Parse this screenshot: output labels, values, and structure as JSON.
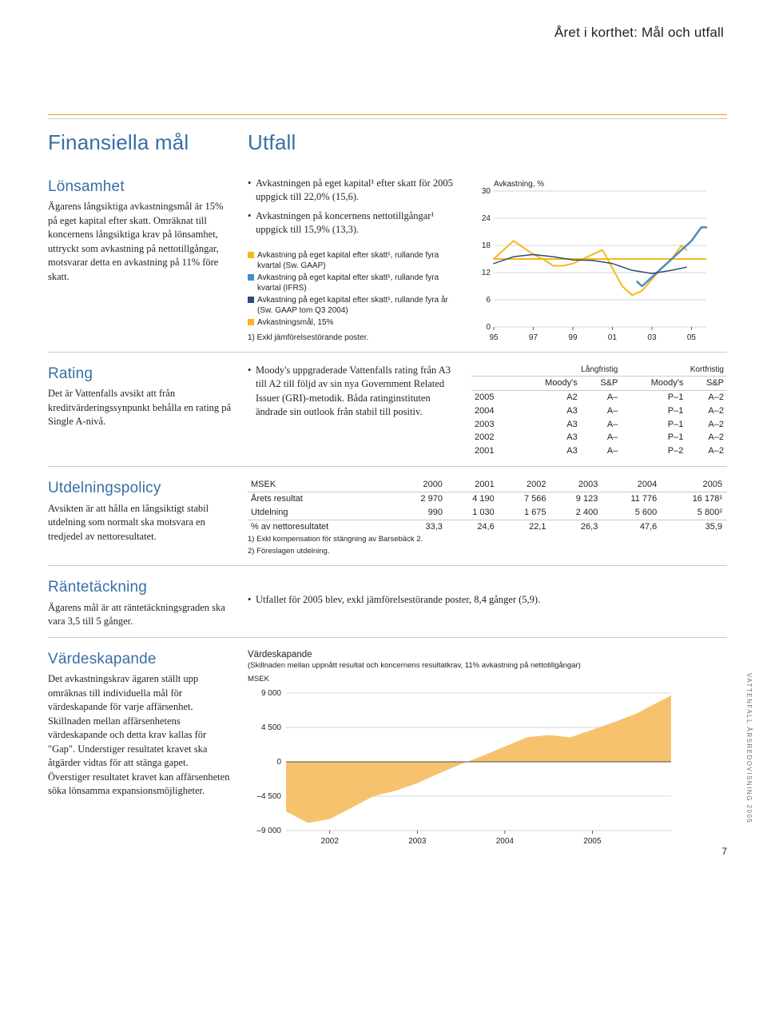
{
  "page_title": "Året i korthet: Mål och utfall",
  "colors": {
    "accent_orange": "#f7941e",
    "blue_heading": "#3a6ea5",
    "line_yellow": "#f7b71e",
    "line_blue": "#4b8dc0",
    "line_navy": "#2a4d7a",
    "fill_area": "#f7c26e",
    "grid_gray": "#c7c8ca",
    "text": "#231f20"
  },
  "headers": {
    "financial": "Finansiella mål",
    "outcome": "Utfall"
  },
  "sections": {
    "lonsamhet": {
      "title": "Lönsamhet",
      "body": "Ägarens långsiktiga avkastningsmål är 15% på eget kapital efter skatt. Omräknat till koncernens långsiktiga krav på lönsamhet, uttryckt som avkastning på nettotillgångar, motsvarar detta en avkastning på 11% före skatt.",
      "bullets": [
        "Avkastningen på eget kapital¹ efter skatt för 2005 uppgick till 22,0% (15,6).",
        "Avkastningen på koncernens nettotillgångar¹ uppgick till 15,9% (13,3)."
      ],
      "legend": [
        "Avkastning på eget kapital efter skatt¹, rullande fyra kvartal (Sw. GAAP)",
        "Avkastning på eget kapital efter skatt¹, rullande fyra kvartal (IFRS)",
        "Avkastning på eget kapital efter skatt¹, rullande fyra år (Sw. GAAP tom Q3 2004)",
        "Avkastningsmål, 15%"
      ],
      "note": "1) Exkl jämförelsestörande poster.",
      "chart": {
        "type": "line",
        "y_title": "Avkastning, %",
        "ylim": [
          0,
          30
        ],
        "yticks": [
          0,
          6,
          12,
          18,
          24,
          30
        ],
        "xticks": [
          "95",
          "97",
          "99",
          "01",
          "03",
          "05"
        ],
        "x_range": [
          1995,
          2005.75
        ],
        "grid_color": "#c7c8ca",
        "background_color": "#ffffff",
        "font_size_ticks": 10,
        "series": [
          {
            "name": "yellow",
            "color": "#f7b71e",
            "width": 2,
            "points": [
              [
                1995,
                15
              ],
              [
                1995.5,
                17
              ],
              [
                1996,
                19
              ],
              [
                1996.5,
                17.5
              ],
              [
                1997,
                16
              ],
              [
                1997.5,
                15
              ],
              [
                1998,
                13.5
              ],
              [
                1998.5,
                13.5
              ],
              [
                1999,
                14
              ],
              [
                1999.5,
                15
              ],
              [
                2000,
                16
              ],
              [
                2000.5,
                17
              ],
              [
                2001,
                13
              ],
              [
                2001.5,
                9
              ],
              [
                2002,
                7
              ],
              [
                2002.5,
                8
              ],
              [
                2003,
                10.5
              ],
              [
                2003.5,
                13
              ],
              [
                2004,
                15
              ],
              [
                2004.5,
                18
              ],
              [
                2004.75,
                17
              ]
            ]
          },
          {
            "name": "blue",
            "color": "#4b8dc0",
            "width": 2.5,
            "points": [
              [
                2002.25,
                10
              ],
              [
                2002.5,
                9
              ],
              [
                2003,
                11
              ],
              [
                2003.5,
                13
              ],
              [
                2004,
                15
              ],
              [
                2004.5,
                17
              ],
              [
                2005,
                19
              ],
              [
                2005.5,
                22
              ],
              [
                2005.75,
                22
              ]
            ]
          },
          {
            "name": "navy",
            "color": "#2a4d7a",
            "width": 1.5,
            "points": [
              [
                1995,
                14
              ],
              [
                1996,
                15.5
              ],
              [
                1997,
                16
              ],
              [
                1998,
                15.5
              ],
              [
                1999,
                14.8
              ],
              [
                2000,
                14.7
              ],
              [
                2001,
                14
              ],
              [
                2002,
                12.5
              ],
              [
                2003,
                11.8
              ],
              [
                2004,
                12.5
              ],
              [
                2004.75,
                13.2
              ]
            ]
          }
        ],
        "target_line": {
          "y": 15,
          "color": "#f7b71e",
          "width": 2
        }
      }
    },
    "rating": {
      "title": "Rating",
      "body": "Det är Vattenfalls avsikt att från kreditvärderingssynpunkt behålla en rating på Single A-nivå.",
      "bullet": "Moody's uppgraderade Vattenfalls rating från A3 till A2 till följd av sin nya Government Related Issuer (GRI)-metodik. Båda ratinginstituten ändrade sin outlook från stabil till positiv.",
      "table": {
        "header_top": [
          "Långfristig",
          "Kortfristig"
        ],
        "header_sub": [
          "Moody's",
          "S&P",
          "Moody's",
          "S&P"
        ],
        "rows": [
          [
            "2005",
            "A2",
            "A–",
            "P–1",
            "A–2"
          ],
          [
            "2004",
            "A3",
            "A–",
            "P–1",
            "A–2"
          ],
          [
            "2003",
            "A3",
            "A–",
            "P–1",
            "A–2"
          ],
          [
            "2002",
            "A3",
            "A–",
            "P–1",
            "A–2"
          ],
          [
            "2001",
            "A3",
            "A–",
            "P–2",
            "A–2"
          ]
        ]
      }
    },
    "utdelning": {
      "title": "Utdelningspolicy",
      "body": "Avsikten är att hålla en långsiktigt stabil utdelning som normalt ska motsvara en tredjedel av nettoresultatet.",
      "table": {
        "header_label": "MSEK",
        "years": [
          "2000",
          "2001",
          "2002",
          "2003",
          "2004",
          "2005"
        ],
        "rows": [
          {
            "label": "Årets resultat",
            "values": [
              "2 970",
              "4 190",
              "7 566",
              "9 123",
              "11 776",
              "16 178¹"
            ]
          },
          {
            "label": "Utdelning",
            "values": [
              "990",
              "1 030",
              "1 675",
              "2 400",
              "5 600",
              "5 800²"
            ]
          },
          {
            "label": "% av nettoresultatet",
            "values": [
              "33,3",
              "24,6",
              "22,1",
              "26,3",
              "47,6",
              "35,9"
            ]
          }
        ],
        "notes": [
          "1) Exkl kompensation för stängning av Barsebäck 2.",
          "2) Föreslagen utdelning."
        ]
      }
    },
    "rante": {
      "title": "Räntetäckning",
      "body": "Ägarens mål är att räntetäckningsgraden ska vara 3,5 till 5 gånger.",
      "bullet": "Utfallet för 2005 blev, exkl jämförelsestörande poster, 8,4 gånger (5,9)."
    },
    "varde": {
      "title": "Värdeskapande",
      "body": "Det avkastningskrav ägaren ställt upp omräknas till individuella mål för värdeskapande för varje affärsenhet. Skillnaden mellan affärsenhetens värdeskapande och detta krav kallas för \"Gap\". Understiger resultatet kravet ska åtgärder vidtas för att stänga gapet. Överstiger resultatet kravet kan affärsenheten söka lönsamma expansionsmöjligheter.",
      "chart_title": "Värdeskapande",
      "chart_sub": "(Skillnaden mellan uppnått resultat och koncernens resultatkrav, 11% avkastning på nettotillgångar)",
      "chart_unit": "MSEK",
      "chart": {
        "type": "area",
        "ylim": [
          -9000,
          9000
        ],
        "yticks": [
          "9 000",
          "4 500",
          "0",
          "–4 500",
          "–9 000"
        ],
        "ytick_values": [
          9000,
          4500,
          0,
          -4500,
          -9000
        ],
        "xticks": [
          "2002",
          "2003",
          "2004",
          "2005"
        ],
        "fill_color": "#f7c26e",
        "grid_color": "#c7c8ca",
        "font_size_ticks": 10,
        "points": [
          [
            2001.5,
            -6500
          ],
          [
            2001.75,
            -8000
          ],
          [
            2002,
            -7500
          ],
          [
            2002.25,
            -6000
          ],
          [
            2002.5,
            -4500
          ],
          [
            2002.75,
            -3800
          ],
          [
            2003,
            -2800
          ],
          [
            2003.25,
            -1500
          ],
          [
            2003.5,
            -300
          ],
          [
            2003.75,
            800
          ],
          [
            2004,
            2000
          ],
          [
            2004.25,
            3200
          ],
          [
            2004.5,
            3500
          ],
          [
            2004.75,
            3200
          ],
          [
            2005,
            4200
          ],
          [
            2005.25,
            5200
          ],
          [
            2005.5,
            6300
          ],
          [
            2005.9,
            8700
          ]
        ]
      }
    }
  },
  "footer": {
    "vertical": "VATTENFALL ÅRSREDOVISNING 2005",
    "page_num": "7"
  }
}
